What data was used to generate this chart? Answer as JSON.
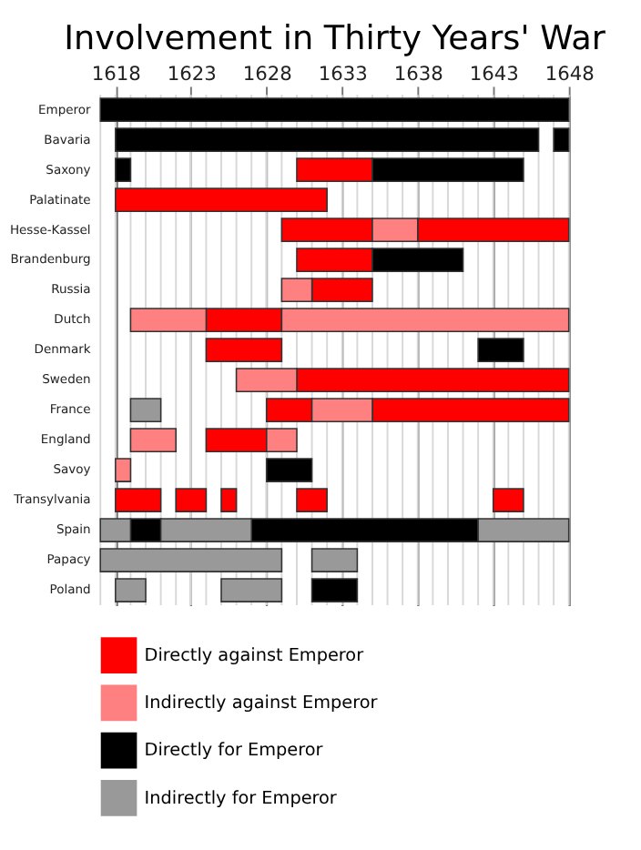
{
  "chart_data": {
    "type": "bar",
    "orientation": "horizontal",
    "title": "Involvement in Thirty Years' War",
    "categories": [
      "Emperor",
      "Bavaria",
      "Saxony",
      "Palatinate",
      "Hesse-Kassel",
      "Brandenburg",
      "Russia",
      "Dutch",
      "Denmark",
      "Sweden",
      "France",
      "England",
      "Savoy",
      "Transylvania",
      "Spain",
      "Papacy",
      "Poland"
    ],
    "xlim": [
      1617,
      1648
    ],
    "xticks": [
      1618,
      1623,
      1628,
      1633,
      1638,
      1643,
      1648
    ],
    "grid": "x",
    "legend": "bottom",
    "series": [
      {
        "name": "Directly against Emperor",
        "color": "#ff0000",
        "base": [
          null,
          null,
          1630,
          1618,
          1629,
          1630,
          1631,
          1624,
          1624,
          1630,
          1628,
          1624,
          null,
          1618,
          null,
          null,
          null
        ],
        "values": [
          null,
          null,
          5,
          14,
          6,
          5,
          4,
          5,
          5,
          18,
          3,
          4,
          null,
          3,
          null,
          null,
          null
        ]
      },
      {
        "color": "#ff0000",
        "base": [
          null,
          null,
          null,
          null,
          1638,
          null,
          null,
          null,
          null,
          null,
          1635,
          null,
          null,
          1622,
          null,
          null,
          null
        ],
        "values": [
          null,
          null,
          null,
          null,
          10,
          null,
          null,
          null,
          null,
          null,
          13,
          null,
          null,
          2,
          null,
          null,
          null
        ]
      },
      {
        "color": "#ff0000",
        "base": [
          null,
          null,
          null,
          null,
          null,
          null,
          null,
          null,
          null,
          null,
          null,
          null,
          null,
          1625,
          null,
          null,
          null
        ],
        "values": [
          null,
          null,
          null,
          null,
          null,
          null,
          null,
          null,
          null,
          null,
          null,
          null,
          null,
          1,
          null,
          null,
          null
        ]
      },
      {
        "color": "#ff0000",
        "base": [
          null,
          null,
          null,
          null,
          null,
          null,
          null,
          null,
          null,
          null,
          null,
          null,
          null,
          1630,
          null,
          null,
          null
        ],
        "values": [
          null,
          null,
          null,
          null,
          null,
          null,
          null,
          null,
          null,
          null,
          null,
          null,
          null,
          2,
          null,
          null,
          null
        ]
      },
      {
        "color": "#ff0000",
        "base": [
          null,
          null,
          null,
          null,
          null,
          null,
          null,
          null,
          null,
          null,
          null,
          null,
          null,
          1643,
          null,
          null,
          null
        ],
        "values": [
          null,
          null,
          null,
          null,
          null,
          null,
          null,
          null,
          null,
          null,
          null,
          null,
          null,
          2,
          null,
          null,
          null
        ]
      },
      {
        "name": "Indirectly against Emperor",
        "color": "#ff8080",
        "base": [
          null,
          null,
          null,
          null,
          1635,
          null,
          1629,
          1619,
          null,
          1626,
          1631,
          1619,
          1618,
          null,
          null,
          null,
          null
        ],
        "values": [
          null,
          null,
          null,
          null,
          3,
          null,
          2,
          5,
          null,
          4,
          4,
          3,
          1,
          null,
          null,
          null,
          null
        ]
      },
      {
        "color": "#ff8080",
        "base": [
          null,
          null,
          null,
          null,
          null,
          null,
          null,
          1629,
          null,
          null,
          null,
          1628,
          null,
          null,
          null,
          null,
          null
        ],
        "values": [
          null,
          null,
          null,
          null,
          null,
          null,
          null,
          19,
          null,
          null,
          null,
          2,
          null,
          null,
          null,
          null,
          null
        ]
      },
      {
        "name": "Directly for Emperor",
        "color": "#000000",
        "base": [
          1617,
          1618,
          1618,
          null,
          null,
          1635,
          null,
          null,
          1642,
          null,
          null,
          null,
          1628,
          null,
          1619,
          null,
          1631
        ],
        "values": [
          31,
          28,
          1,
          null,
          null,
          6,
          null,
          null,
          3,
          null,
          null,
          null,
          3,
          null,
          2,
          null,
          3
        ]
      },
      {
        "color": "#000000",
        "base": [
          null,
          1647,
          1635,
          null,
          null,
          null,
          null,
          null,
          null,
          null,
          null,
          null,
          null,
          null,
          1627,
          null,
          null
        ],
        "values": [
          null,
          1,
          10,
          null,
          null,
          null,
          null,
          null,
          null,
          null,
          null,
          null,
          null,
          null,
          15,
          null,
          null
        ]
      },
      {
        "name": "Indirectly for Emperor",
        "color": "#999999",
        "base": [
          null,
          null,
          null,
          null,
          null,
          null,
          null,
          null,
          null,
          null,
          1619,
          null,
          null,
          null,
          1617,
          1617,
          1618
        ],
        "values": [
          null,
          null,
          null,
          null,
          null,
          null,
          null,
          null,
          null,
          null,
          2,
          null,
          null,
          null,
          2,
          12,
          2
        ]
      },
      {
        "color": "#999999",
        "base": [
          null,
          null,
          null,
          null,
          null,
          null,
          null,
          null,
          null,
          null,
          null,
          null,
          null,
          null,
          1621,
          1631,
          1625
        ],
        "values": [
          null,
          null,
          null,
          null,
          null,
          null,
          null,
          null,
          null,
          null,
          null,
          null,
          null,
          null,
          6,
          3,
          4
        ]
      },
      {
        "color": "#999999",
        "base": [
          null,
          null,
          null,
          null,
          null,
          null,
          null,
          null,
          null,
          null,
          null,
          null,
          null,
          null,
          1642,
          null,
          null
        ],
        "values": [
          null,
          null,
          null,
          null,
          null,
          null,
          null,
          null,
          null,
          null,
          null,
          null,
          null,
          null,
          6,
          null,
          null
        ]
      }
    ]
  }
}
